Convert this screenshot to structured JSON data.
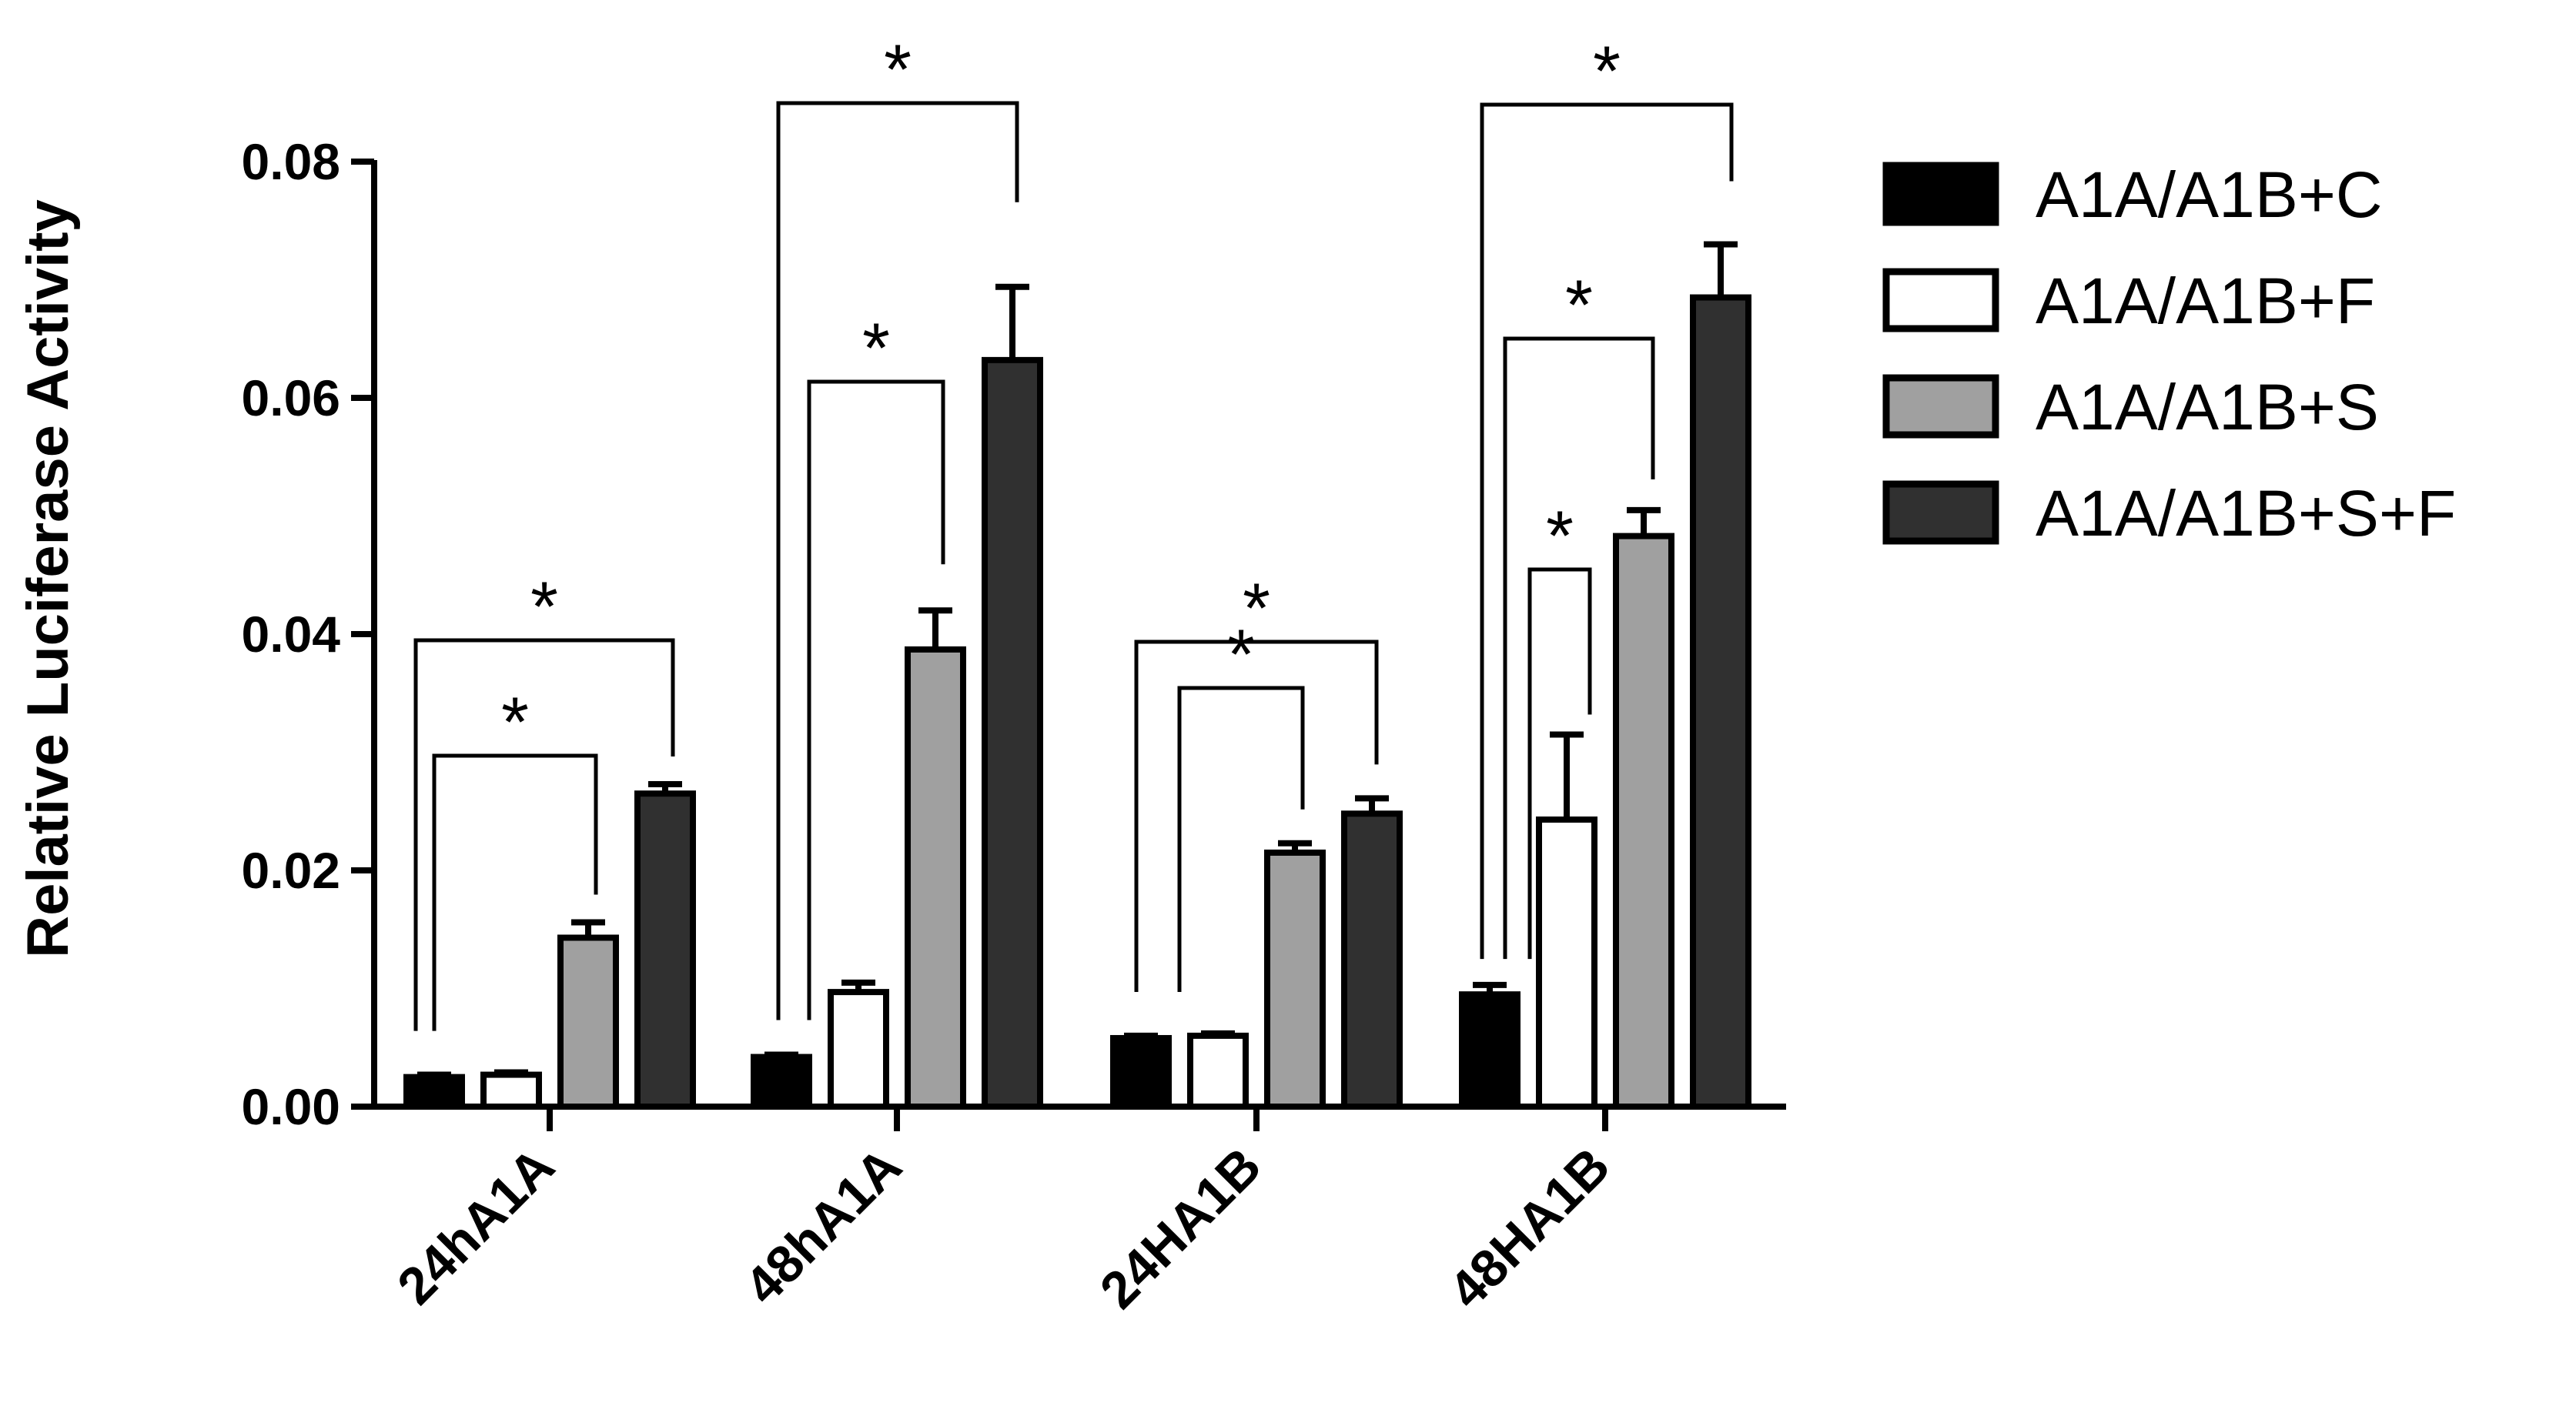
{
  "chart_data": {
    "type": "bar",
    "ylabel": "Relative Luciferase Activity",
    "ylim": [
      0,
      0.08
    ],
    "yticks": [
      "0.00",
      "0.02",
      "0.04",
      "0.06",
      "0.08"
    ],
    "categories": [
      "24hA1A",
      "48hA1A",
      "24HA1B",
      "48HA1B"
    ],
    "series": [
      {
        "name": "A1A/A1B+C",
        "color": "#000000",
        "values": [
          0.0025,
          0.0042,
          0.0058,
          0.0095
        ],
        "errors": [
          0.0002,
          0.0002,
          0.0002,
          0.0008
        ]
      },
      {
        "name": "A1A/A1B+F",
        "color": "#ffffff",
        "values": [
          0.0027,
          0.0097,
          0.006,
          0.0243
        ],
        "errors": [
          0.0002,
          0.0008,
          0.0002,
          0.0072
        ]
      },
      {
        "name": "A1A/A1B+S",
        "color": "#a0a0a0",
        "values": [
          0.0143,
          0.0387,
          0.0215,
          0.0483
        ],
        "errors": [
          0.0013,
          0.0033,
          0.0008,
          0.0022
        ]
      },
      {
        "name": "A1A/A1B+S+F",
        "color": "#303030",
        "values": [
          0.0265,
          0.0632,
          0.0248,
          0.0685
        ],
        "errors": [
          0.0008,
          0.0062,
          0.0013,
          0.0045
        ]
      }
    ],
    "legend_position": "right",
    "grid": false,
    "annotations": [
      {
        "text": "*",
        "category": 0,
        "from": 0,
        "to": 2
      },
      {
        "text": "*",
        "category": 0,
        "from": 0,
        "to": 3
      },
      {
        "text": "*",
        "category": 1,
        "from": 1,
        "to": 2
      },
      {
        "text": "*",
        "category": 1,
        "from": 0,
        "to": 3
      },
      {
        "text": "*",
        "category": 2,
        "from": 1,
        "to": 2
      },
      {
        "text": "*",
        "category": 2,
        "from": 0,
        "to": 3
      },
      {
        "text": "*",
        "category": 3,
        "from": 1,
        "to": 1
      },
      {
        "text": "*",
        "category": 3,
        "from": 1,
        "to": 2
      },
      {
        "text": "*",
        "category": 3,
        "from": 0,
        "to": 3
      }
    ]
  }
}
